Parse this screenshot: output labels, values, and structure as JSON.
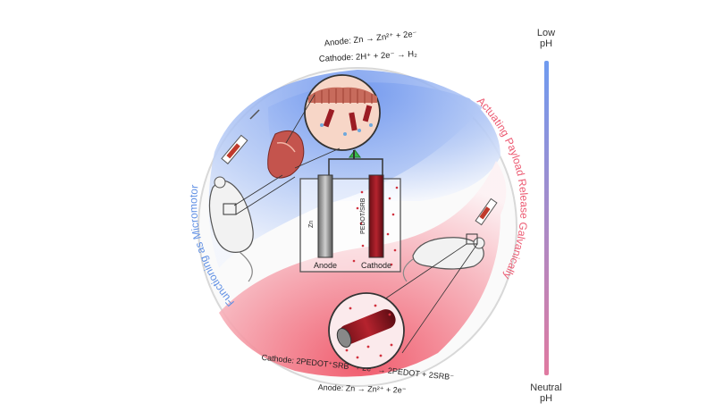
{
  "top_equations": {
    "anode": "Anode: Zn → Zn²⁺ + 2e⁻",
    "cathode": "Cathode: 2H⁺ + 2e⁻ → H₂"
  },
  "bottom_equations": {
    "cathode": "Cathode: 2PEDOT⁺SRB⁻ + 2e⁻ → 2PEDOT + 2SRB⁻",
    "anode": "Anode: Zn → Zn²⁺ + 2e⁻"
  },
  "arc_labels": {
    "left": "Functioning as Micromotor",
    "right": "Actuating Payload Release Galvanically"
  },
  "ph_scale": {
    "top_label_line1": "Low",
    "top_label_line2": "pH",
    "bottom_label_line1": "Neutral",
    "bottom_label_line2": "pH",
    "top_color": "#6f9bf0",
    "bottom_color": "#e07aa0"
  },
  "cell": {
    "anode_label": "Anode",
    "cathode_label": "Cathode",
    "anode_electrode_text": "Zn",
    "cathode_electrode_text": "PEDOT/SRB"
  },
  "colors": {
    "blue_lobe": "#6e97ef",
    "red_lobe": "#ef5b6c",
    "arc_text_left": "#5f8fe4",
    "arc_text_right": "#ec5a72"
  }
}
